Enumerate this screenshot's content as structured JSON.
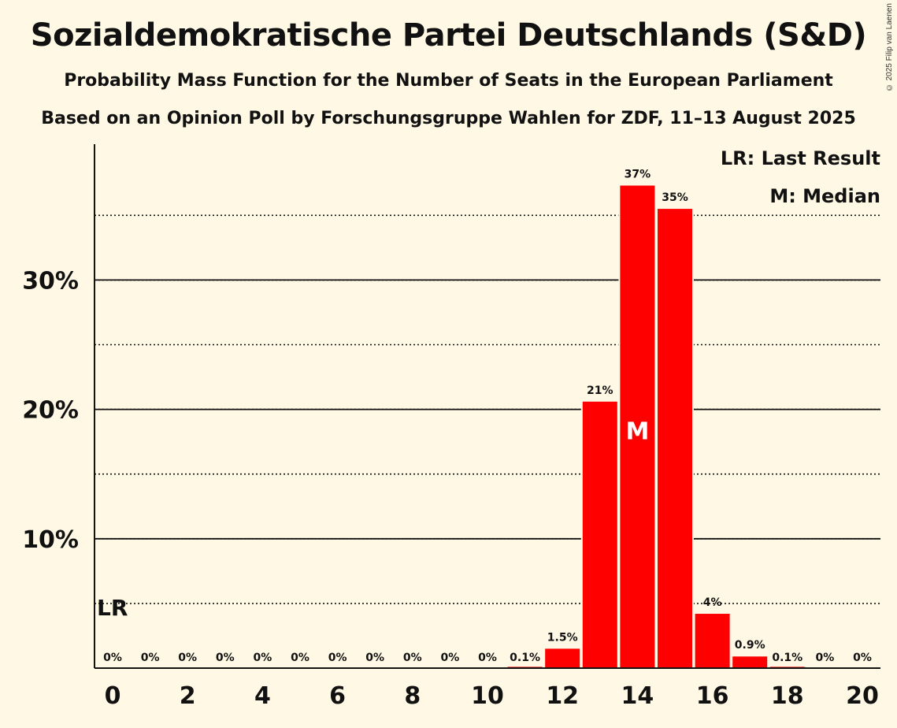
{
  "title": "Sozialdemokratische Partei Deutschlands (S&D)",
  "subtitle": "Probability Mass Function for the Number of Seats in the European Parliament",
  "subtitle2": "Based on an Opinion Poll by Forschungsgruppe Wahlen for ZDF, 11–13 August 2025",
  "copyright": "© 2025 Filip van Laenen",
  "legend": {
    "last_result": "LR: Last Result",
    "median": "M: Median"
  },
  "colors": {
    "bar": "#ff0000",
    "background": "#fff8e4",
    "text": "#111111"
  },
  "chart_data": {
    "type": "bar",
    "categories": [
      0,
      1,
      2,
      3,
      4,
      5,
      6,
      7,
      8,
      9,
      10,
      11,
      12,
      13,
      14,
      15,
      16,
      17,
      18,
      19,
      20
    ],
    "values": [
      0,
      0,
      0,
      0,
      0,
      0,
      0,
      0,
      0,
      0,
      0,
      0.1,
      1.5,
      20.6,
      37.3,
      35.5,
      4.2,
      0.9,
      0.1,
      0,
      0
    ],
    "labels": [
      "0%",
      "0%",
      "0%",
      "0%",
      "0%",
      "0%",
      "0%",
      "0%",
      "0%",
      "0%",
      "0%",
      "0.1%",
      "1.5%",
      "21%",
      "37%",
      "35%",
      "4%",
      "0.9%",
      "0.1%",
      "0%",
      "0%"
    ],
    "x_ticks": [
      0,
      2,
      4,
      6,
      8,
      10,
      12,
      14,
      16,
      18,
      20
    ],
    "y_ticks": [
      10,
      20,
      30
    ],
    "y_tick_labels": [
      "10%",
      "20%",
      "30%"
    ],
    "y_minor_ticks": [
      5,
      15,
      25,
      35
    ],
    "ylim": [
      0,
      40.5
    ],
    "median_seat": 14,
    "median_marker": "M",
    "last_result_seat": 0,
    "last_result_marker": "LR",
    "last_result_level": 5,
    "grid": true,
    "legend_position": "top-right"
  }
}
